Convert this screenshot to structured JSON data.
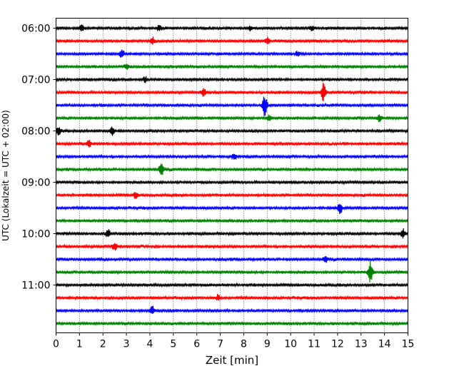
{
  "chart_data": {
    "type": "line",
    "title": "",
    "xlabel": "Zeit  [min]",
    "ylabel": "UTC (Lokalzeit = UTC + 02:00)",
    "xlim": [
      0,
      15
    ],
    "x_ticks": [
      0,
      1,
      2,
      3,
      4,
      5,
      6,
      7,
      8,
      9,
      10,
      11,
      12,
      13,
      14,
      15
    ],
    "grid": "vertical dotted",
    "y_tick_labels": [
      "06:00",
      "07:00",
      "08:00",
      "09:00",
      "10:00",
      "11:00"
    ],
    "trace_colors": [
      "#000000",
      "#ff0000",
      "#0000ff",
      "#008000"
    ],
    "traces": [
      {
        "start": "06:00",
        "color": "#000000"
      },
      {
        "start": "06:15",
        "color": "#ff0000"
      },
      {
        "start": "06:30",
        "color": "#0000ff"
      },
      {
        "start": "06:45",
        "color": "#008000"
      },
      {
        "start": "07:00",
        "color": "#000000"
      },
      {
        "start": "07:15",
        "color": "#ff0000"
      },
      {
        "start": "07:30",
        "color": "#0000ff"
      },
      {
        "start": "07:45",
        "color": "#008000"
      },
      {
        "start": "08:00",
        "color": "#000000"
      },
      {
        "start": "08:15",
        "color": "#ff0000"
      },
      {
        "start": "08:30",
        "color": "#0000ff"
      },
      {
        "start": "08:45",
        "color": "#008000"
      },
      {
        "start": "09:00",
        "color": "#000000"
      },
      {
        "start": "09:15",
        "color": "#ff0000"
      },
      {
        "start": "09:30",
        "color": "#0000ff"
      },
      {
        "start": "09:45",
        "color": "#008000"
      },
      {
        "start": "10:00",
        "color": "#000000"
      },
      {
        "start": "10:15",
        "color": "#ff0000"
      },
      {
        "start": "10:30",
        "color": "#0000ff"
      },
      {
        "start": "10:45",
        "color": "#008000"
      },
      {
        "start": "11:00",
        "color": "#000000"
      },
      {
        "start": "11:15",
        "color": "#ff0000"
      },
      {
        "start": "11:30",
        "color": "#0000ff"
      },
      {
        "start": "11:45",
        "color": "#008000"
      }
    ],
    "events": [
      {
        "trace": 0,
        "x": 1.1,
        "amp": 0.35
      },
      {
        "trace": 0,
        "x": 4.4,
        "amp": 0.35
      },
      {
        "trace": 0,
        "x": 8.3,
        "amp": 0.3
      },
      {
        "trace": 0,
        "x": 10.9,
        "amp": 0.3
      },
      {
        "trace": 1,
        "x": 4.1,
        "amp": 0.4
      },
      {
        "trace": 1,
        "x": 9.0,
        "amp": 0.45
      },
      {
        "trace": 2,
        "x": 2.8,
        "amp": 0.6
      },
      {
        "trace": 2,
        "x": 10.3,
        "amp": 0.3
      },
      {
        "trace": 3,
        "x": 3.0,
        "amp": 0.3
      },
      {
        "trace": 4,
        "x": 3.8,
        "amp": 0.3
      },
      {
        "trace": 5,
        "x": 6.3,
        "amp": 0.45
      },
      {
        "trace": 5,
        "x": 11.4,
        "amp": 1.1
      },
      {
        "trace": 6,
        "x": 8.9,
        "amp": 1.3
      },
      {
        "trace": 7,
        "x": 9.1,
        "amp": 0.4
      },
      {
        "trace": 7,
        "x": 13.8,
        "amp": 0.4
      },
      {
        "trace": 8,
        "x": 0.1,
        "amp": 0.55
      },
      {
        "trace": 8,
        "x": 2.4,
        "amp": 0.5
      },
      {
        "trace": 9,
        "x": 1.4,
        "amp": 0.4
      },
      {
        "trace": 10,
        "x": 7.6,
        "amp": 0.4
      },
      {
        "trace": 11,
        "x": 4.5,
        "amp": 0.8
      },
      {
        "trace": 13,
        "x": 3.4,
        "amp": 0.4
      },
      {
        "trace": 14,
        "x": 12.1,
        "amp": 0.6
      },
      {
        "trace": 16,
        "x": 2.2,
        "amp": 0.5
      },
      {
        "trace": 16,
        "x": 14.8,
        "amp": 0.5
      },
      {
        "trace": 17,
        "x": 2.5,
        "amp": 0.5
      },
      {
        "trace": 18,
        "x": 11.5,
        "amp": 0.4
      },
      {
        "trace": 19,
        "x": 13.4,
        "amp": 1.3
      },
      {
        "trace": 21,
        "x": 6.9,
        "amp": 0.3
      },
      {
        "trace": 22,
        "x": 4.1,
        "amp": 0.45
      }
    ]
  }
}
